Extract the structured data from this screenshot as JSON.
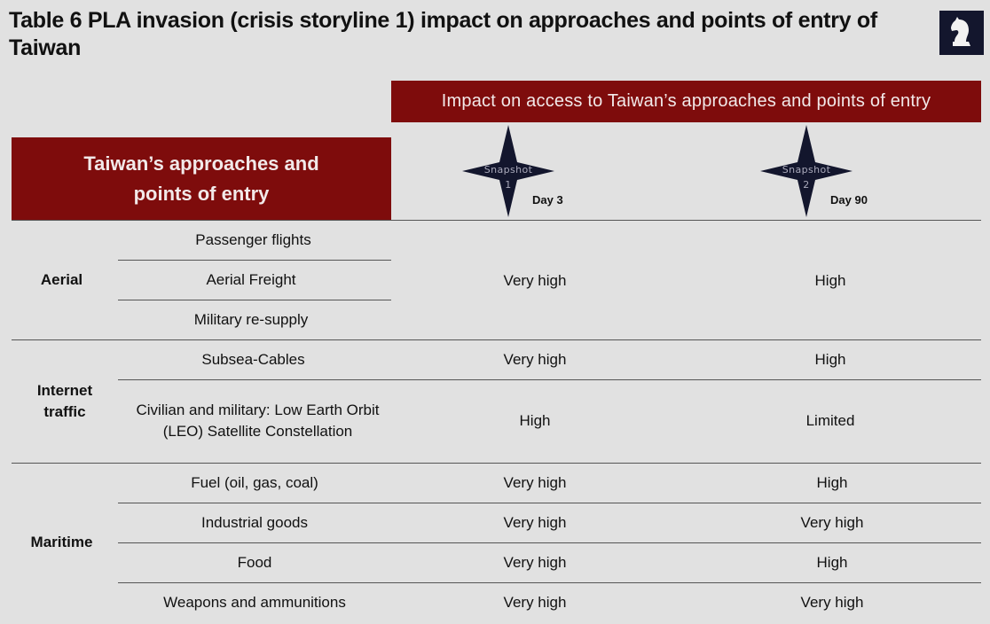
{
  "title": "Table 6 PLA invasion (crisis storyline 1) impact on approaches and points of entry of Taiwan",
  "impact_header": "Impact on access to Taiwan’s approaches and points of entry",
  "left_header": "Taiwan’s approaches and points of entry",
  "snapshots": [
    {
      "line1": "Snapshot",
      "line2": "1",
      "day": "Day 3"
    },
    {
      "line1": "Snapshot",
      "line2": "2",
      "day": "Day 90"
    }
  ],
  "categories": {
    "aerial": "Aerial",
    "internet": "Internet traffic",
    "maritime": "Maritime"
  },
  "rows": {
    "passenger_flights": "Passenger flights",
    "aerial_freight": "Aerial Freight",
    "military_resupply": "Military re-supply",
    "subsea_cables": "Subsea-Cables",
    "leo": "Civilian and military:  Low Earth Orbit (LEO) Satellite Constellation",
    "fuel": "Fuel (oil, gas, coal)",
    "industrial": "Industrial goods",
    "food": "Food",
    "weapons": "Weapons and ammunitions"
  },
  "values": {
    "aerial": {
      "day3": "Very high",
      "day90": "High"
    },
    "subsea": {
      "day3": "Very high",
      "day90": "High"
    },
    "leo": {
      "day3": "High",
      "day90": "Limited"
    },
    "fuel": {
      "day3": "Very high",
      "day90": "High"
    },
    "industrial": {
      "day3": "Very high",
      "day90": "Very high"
    },
    "food": {
      "day3": "Very high",
      "day90": "High"
    },
    "weapons": {
      "day3": "Very high",
      "day90": "Very high"
    }
  },
  "colors": {
    "header_bg": "#7e0c0c",
    "logo_bg": "#13162d",
    "star": "#13162d",
    "background": "#e1e1e1"
  },
  "icons": {
    "logo": "knight-chess-piece-icon",
    "snapshot": "four-point-star-icon"
  }
}
